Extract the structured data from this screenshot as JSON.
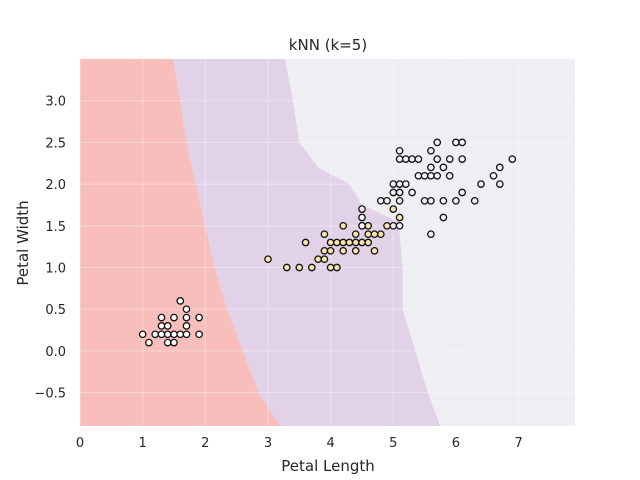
{
  "chart_data": {
    "type": "scatter",
    "title": "kNN (k=5)",
    "xlabel": "Petal Length",
    "ylabel": "Petal Width",
    "xlim": [
      0,
      7.9
    ],
    "ylim": [
      -0.9,
      3.5
    ],
    "xticks": [
      0,
      1,
      2,
      3,
      4,
      5,
      6,
      7
    ],
    "yticks": [
      -0.5,
      0.0,
      0.5,
      1.0,
      1.5,
      2.0,
      2.5,
      3.0
    ],
    "xtick_labels": [
      "0",
      "1",
      "2",
      "3",
      "4",
      "5",
      "6",
      "7"
    ],
    "ytick_labels": [
      "−0.5",
      "0.0",
      "0.5",
      "1.0",
      "1.5",
      "2.0",
      "2.5",
      "3.0"
    ],
    "grid": true,
    "background_color": "#efeff3",
    "regions": [
      {
        "color": "#f8bebb",
        "polygon": [
          [
            0,
            3.5
          ],
          [
            1.49,
            3.5
          ],
          [
            1.6,
            3.0
          ],
          [
            1.7,
            2.5
          ],
          [
            1.85,
            2.0
          ],
          [
            2.0,
            1.5
          ],
          [
            2.15,
            1.0
          ],
          [
            2.35,
            0.5
          ],
          [
            2.6,
            0.0
          ],
          [
            2.85,
            -0.5
          ],
          [
            3.2,
            -0.9
          ],
          [
            0,
            -0.9
          ]
        ]
      },
      {
        "color": "#e1d2e8",
        "polygon": [
          [
            1.49,
            3.5
          ],
          [
            3.27,
            3.5
          ],
          [
            3.4,
            3.0
          ],
          [
            3.5,
            2.5
          ],
          [
            3.8,
            2.2
          ],
          [
            4.3,
            2.0
          ],
          [
            4.5,
            1.75
          ],
          [
            5.08,
            1.55
          ],
          [
            5.15,
            1.0
          ],
          [
            5.15,
            0.5
          ],
          [
            5.35,
            0.0
          ],
          [
            5.55,
            -0.5
          ],
          [
            5.75,
            -0.9
          ],
          [
            3.2,
            -0.9
          ],
          [
            2.85,
            -0.5
          ],
          [
            2.6,
            0.0
          ],
          [
            2.35,
            0.5
          ],
          [
            2.15,
            1.0
          ],
          [
            2.0,
            1.5
          ],
          [
            1.85,
            2.0
          ],
          [
            1.7,
            2.5
          ],
          [
            1.6,
            3.0
          ]
        ]
      }
    ],
    "series": [
      {
        "color": "#ffffff",
        "points": [
          [
            1.0,
            0.2
          ],
          [
            1.1,
            0.1
          ],
          [
            1.2,
            0.2
          ],
          [
            1.3,
            0.2
          ],
          [
            1.3,
            0.3
          ],
          [
            1.3,
            0.4
          ],
          [
            1.4,
            0.1
          ],
          [
            1.4,
            0.2
          ],
          [
            1.4,
            0.3
          ],
          [
            1.5,
            0.1
          ],
          [
            1.5,
            0.2
          ],
          [
            1.5,
            0.4
          ],
          [
            1.6,
            0.2
          ],
          [
            1.6,
            0.6
          ],
          [
            1.7,
            0.2
          ],
          [
            1.7,
            0.3
          ],
          [
            1.7,
            0.4
          ],
          [
            1.7,
            0.5
          ],
          [
            1.9,
            0.2
          ],
          [
            1.9,
            0.4
          ]
        ]
      },
      {
        "color": "#fbe3ac",
        "points": [
          [
            3.0,
            1.1
          ],
          [
            3.3,
            1.0
          ],
          [
            3.5,
            1.0
          ],
          [
            3.6,
            1.3
          ],
          [
            3.7,
            1.0
          ],
          [
            3.8,
            1.1
          ],
          [
            3.9,
            1.1
          ],
          [
            3.9,
            1.2
          ],
          [
            3.9,
            1.4
          ],
          [
            4.0,
            1.0
          ],
          [
            4.0,
            1.2
          ],
          [
            4.0,
            1.3
          ],
          [
            4.1,
            1.0
          ],
          [
            4.1,
            1.3
          ],
          [
            4.2,
            1.2
          ],
          [
            4.2,
            1.3
          ],
          [
            4.2,
            1.5
          ],
          [
            4.3,
            1.3
          ],
          [
            4.4,
            1.2
          ],
          [
            4.4,
            1.3
          ],
          [
            4.4,
            1.4
          ],
          [
            4.5,
            1.3
          ],
          [
            4.5,
            1.5
          ],
          [
            4.6,
            1.3
          ],
          [
            4.6,
            1.4
          ],
          [
            4.6,
            1.5
          ],
          [
            4.7,
            1.2
          ],
          [
            4.7,
            1.4
          ],
          [
            4.8,
            1.4
          ],
          [
            4.9,
            1.5
          ],
          [
            5.0,
            1.7
          ],
          [
            5.1,
            1.6
          ]
        ]
      },
      {
        "color": "#f2f0f3",
        "points": [
          [
            4.5,
            1.7
          ],
          [
            4.8,
            1.8
          ],
          [
            4.9,
            1.8
          ],
          [
            5.0,
            1.5
          ],
          [
            5.0,
            1.9
          ],
          [
            5.0,
            2.0
          ],
          [
            5.1,
            1.5
          ],
          [
            5.1,
            1.8
          ],
          [
            5.1,
            1.9
          ],
          [
            5.1,
            2.0
          ],
          [
            5.1,
            2.3
          ],
          [
            5.1,
            2.4
          ],
          [
            5.2,
            2.0
          ],
          [
            5.2,
            2.3
          ],
          [
            5.3,
            1.9
          ],
          [
            5.3,
            2.3
          ],
          [
            5.4,
            2.1
          ],
          [
            5.4,
            2.3
          ],
          [
            5.5,
            1.8
          ],
          [
            5.5,
            2.1
          ],
          [
            5.6,
            1.4
          ],
          [
            5.6,
            1.8
          ],
          [
            5.6,
            2.1
          ],
          [
            5.6,
            2.2
          ],
          [
            5.6,
            2.4
          ],
          [
            5.7,
            2.1
          ],
          [
            5.7,
            2.3
          ],
          [
            5.7,
            2.5
          ],
          [
            5.8,
            1.6
          ],
          [
            5.8,
            1.8
          ],
          [
            5.8,
            2.2
          ],
          [
            5.9,
            2.1
          ],
          [
            5.9,
            2.3
          ],
          [
            6.0,
            1.8
          ],
          [
            6.0,
            2.5
          ],
          [
            6.1,
            1.9
          ],
          [
            6.1,
            2.3
          ],
          [
            6.1,
            2.5
          ],
          [
            6.3,
            1.8
          ],
          [
            6.4,
            2.0
          ],
          [
            6.6,
            2.1
          ],
          [
            6.7,
            2.0
          ],
          [
            6.7,
            2.2
          ],
          [
            6.9,
            2.3
          ]
        ]
      },
      {
        "color": "#ffffff",
        "points": [
          [
            4.5,
            1.6
          ],
          [
            4.5,
            1.5
          ]
        ]
      }
    ]
  }
}
